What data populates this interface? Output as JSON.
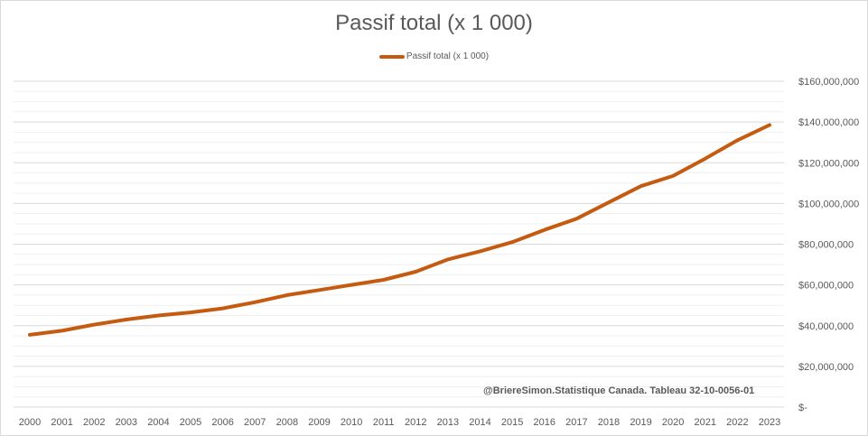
{
  "chart_data": {
    "type": "line",
    "title": "Passif total (x 1 000)",
    "xlabel": "",
    "ylabel": "",
    "ylim": [
      0,
      160000000
    ],
    "y_ticks": [
      0,
      20000000,
      40000000,
      60000000,
      80000000,
      100000000,
      120000000,
      140000000,
      160000000
    ],
    "y_tick_labels": [
      "$-",
      "$20,000,000",
      "$40,000,000",
      "$60,000,000",
      "$80,000,000",
      "$100,000,000",
      "$120,000,000",
      "$140,000,000",
      "$160,000,000"
    ],
    "y_axis_side": "right",
    "grid": true,
    "legend_position": "top-center",
    "categories": [
      "2000",
      "2001",
      "2002",
      "2003",
      "2004",
      "2005",
      "2006",
      "2007",
      "2008",
      "2009",
      "2010",
      "2011",
      "2012",
      "2013",
      "2014",
      "2015",
      "2016",
      "2017",
      "2018",
      "2019",
      "2020",
      "2021",
      "2022",
      "2023"
    ],
    "series": [
      {
        "name": "Passif total (x 1 000)",
        "color": "#c55a11",
        "values": [
          35500000,
          37500000,
          40500000,
          43000000,
          45000000,
          46500000,
          48500000,
          51500000,
          55000000,
          57500000,
          60000000,
          62500000,
          66500000,
          72500000,
          76500000,
          81000000,
          87000000,
          92500000,
          100500000,
          108500000,
          113500000,
          122000000,
          131000000,
          138500000
        ]
      }
    ],
    "annotation": "@BriereSimon.Statistique Canada. Tableau 32-10-0056-01"
  }
}
